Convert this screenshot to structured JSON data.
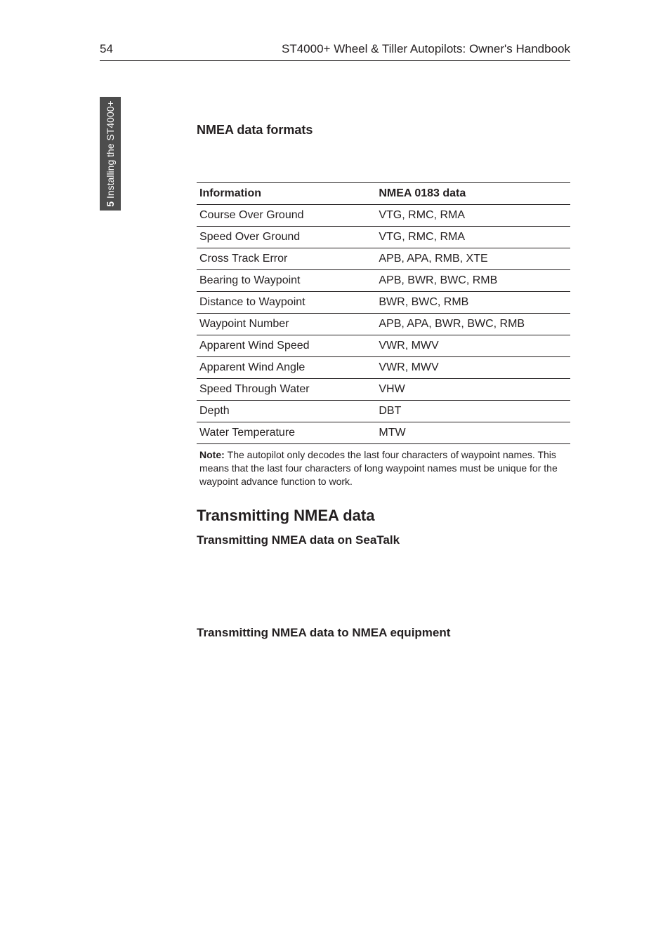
{
  "header": {
    "page_number": "54",
    "running_head": "ST4000+ Wheel & Tiller Autopilots: Owner's Handbook"
  },
  "side_tab": {
    "chapter_num": "5",
    "chapter_title": " Installing the ST4000+"
  },
  "section_heading": "NMEA data formats",
  "table": {
    "col1_header": "Information",
    "col2_header": "NMEA 0183 data",
    "rows": [
      {
        "info": "Course Over Ground",
        "data": "VTG, RMC, RMA"
      },
      {
        "info": "Speed Over Ground",
        "data": "VTG, RMC, RMA"
      },
      {
        "info": "Cross Track Error",
        "data": "APB, APA, RMB, XTE"
      },
      {
        "info": "Bearing to Waypoint",
        "data": "APB, BWR, BWC, RMB"
      },
      {
        "info": "Distance to Waypoint",
        "data": "BWR, BWC, RMB"
      },
      {
        "info": "Waypoint Number",
        "data": "APB, APA, BWR, BWC, RMB"
      },
      {
        "info": "Apparent Wind Speed",
        "data": "VWR, MWV"
      },
      {
        "info": "Apparent Wind Angle",
        "data": "VWR, MWV"
      },
      {
        "info": "Speed Through Water",
        "data": "VHW"
      },
      {
        "info": "Depth",
        "data": "DBT"
      },
      {
        "info": "Water Temperature",
        "data": "MTW"
      }
    ]
  },
  "note": {
    "label": "Note: ",
    "text": "The autopilot only decodes the last four characters of waypoint names. This means that the last four characters of long waypoint names must be unique for the waypoint advance function to work."
  },
  "h2": "Transmitting NMEA data",
  "h4a": "Transmitting NMEA data on SeaTalk",
  "h4b": "Transmitting NMEA data to NMEA equipment"
}
